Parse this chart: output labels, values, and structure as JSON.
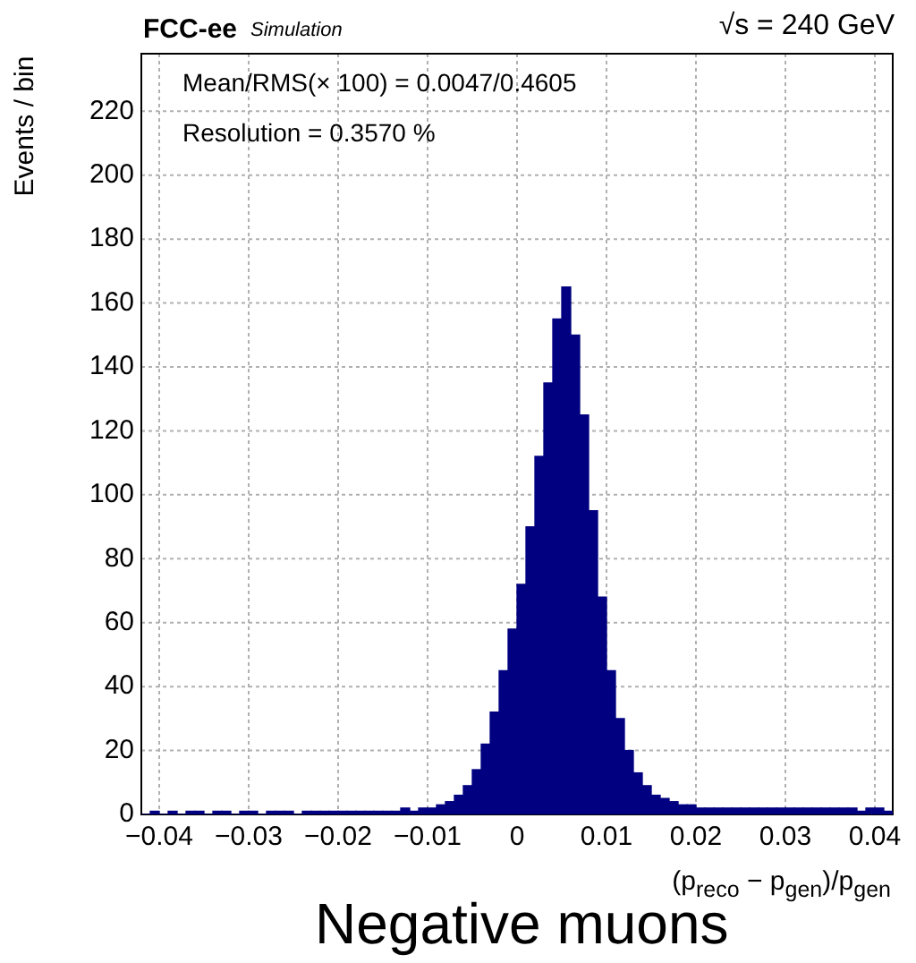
{
  "chart_data": {
    "type": "histogram",
    "title": "FCC-ee",
    "subtitle": "Simulation",
    "xlabel": "(p$_{reco}$ − p$_{gen}$)/p$_{gen}$",
    "ylabel": "Events / bin",
    "annotations": [
      "√s = 240 GeV",
      "Mean/RMS(× 100) = 0.0047/0.4605",
      "Resolution = 0.3570 %",
      "Negative muons"
    ],
    "bins": [
      -0.042,
      -0.041,
      -0.04,
      -0.039,
      -0.038,
      -0.037,
      -0.036,
      -0.035,
      -0.034,
      -0.033,
      -0.032,
      -0.031,
      -0.03,
      -0.029,
      -0.028,
      -0.027,
      -0.026,
      -0.025,
      -0.024,
      -0.023,
      -0.022,
      -0.021,
      -0.02,
      -0.019,
      -0.018,
      -0.017,
      -0.016,
      -0.015,
      -0.014,
      -0.013,
      -0.012,
      -0.011,
      -0.01,
      -0.009,
      -0.008,
      -0.007,
      -0.006,
      -0.005,
      -0.004,
      -0.003,
      -0.002,
      -0.001,
      0,
      0.001,
      0.002,
      0.003,
      0.004,
      0.005,
      0.006,
      0.007,
      0.008,
      0.009,
      0.01,
      0.011,
      0.012,
      0.013,
      0.014,
      0.015,
      0.016,
      0.017,
      0.018,
      0.019,
      0.02,
      0.021,
      0.022,
      0.023,
      0.024,
      0.025,
      0.026,
      0.027,
      0.028,
      0.029,
      0.03,
      0.031,
      0.032,
      0.033,
      0.034,
      0.035,
      0.036,
      0.037,
      0.038,
      0.039,
      0.04,
      0.041,
      0.042
    ],
    "values": [
      0,
      1,
      0,
      1,
      0,
      1,
      1,
      0,
      1,
      1,
      0,
      1,
      1,
      0,
      1,
      1,
      1,
      0,
      1,
      1,
      1,
      1,
      1,
      1,
      1,
      1,
      1,
      1,
      1,
      2,
      1,
      2,
      2,
      3,
      4,
      6,
      9,
      14,
      22,
      32,
      45,
      58,
      72,
      90,
      112,
      135,
      155,
      165,
      150,
      125,
      95,
      68,
      45,
      30,
      20,
      13,
      9,
      6,
      5,
      4,
      3,
      3,
      2,
      2,
      2,
      2,
      2,
      2,
      2,
      2,
      2,
      2,
      2,
      2,
      2,
      2,
      2,
      2,
      2,
      2,
      1,
      2,
      2,
      1
    ],
    "color": "#000080",
    "xlim": [
      -0.042,
      0.042
    ],
    "ylim": [
      0,
      238
    ],
    "xticks": [
      {
        "value": -0.04,
        "label": "−0.04"
      },
      {
        "value": -0.03,
        "label": "−0.03"
      },
      {
        "value": -0.02,
        "label": "−0.02"
      },
      {
        "value": -0.01,
        "label": "−0.01"
      },
      0,
      0.01,
      0.02,
      0.03,
      0.04
    ],
    "yticks": [
      0,
      20,
      40,
      60,
      80,
      100,
      120,
      140,
      160,
      180,
      200,
      220
    ],
    "grid": true
  }
}
